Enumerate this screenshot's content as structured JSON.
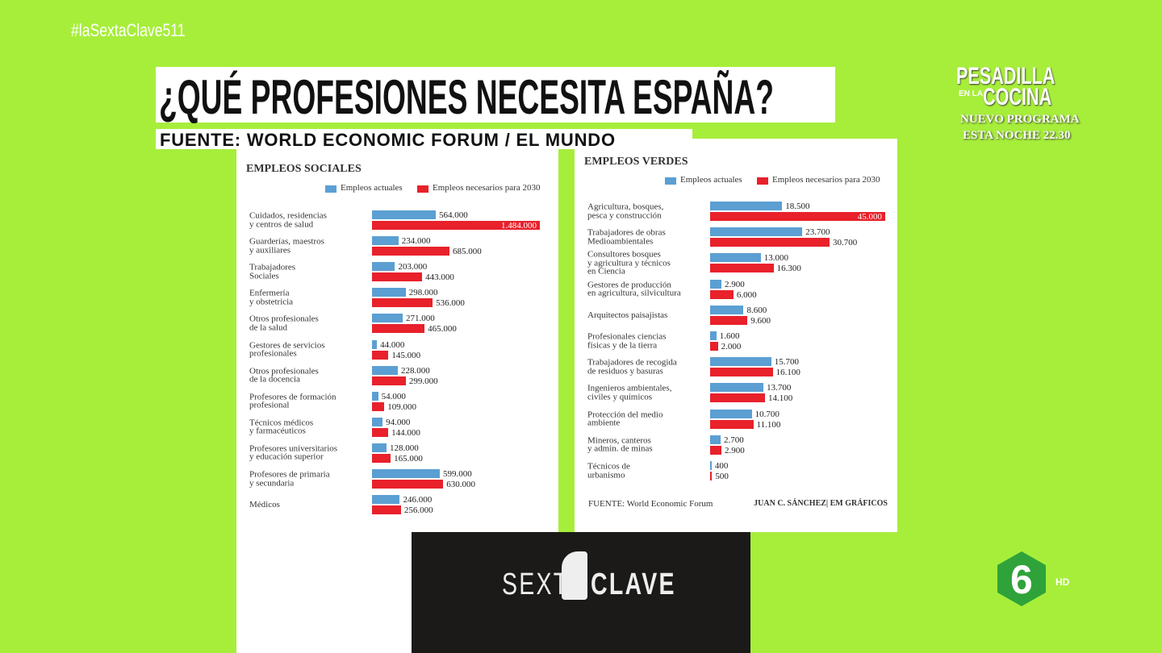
{
  "hashtag": "#laSextaClave511",
  "headline": "¿QUÉ PROFESIONES NECESITA ESPAÑA?",
  "source": "FUENTE: WORLD ECONOMIC FORUM / EL MUNDO",
  "promo": {
    "show_top": "PESADILLA",
    "show_small": "EN LA",
    "show_bottom": "COCINA",
    "line1": "NUEVO PROGRAMA",
    "line2": "ESTA NOCHE 22.30"
  },
  "program_logo": {
    "left": "SEXTA",
    "right": "CLAVE"
  },
  "channel": {
    "logo": "6",
    "quality": "HD"
  },
  "chart_data": [
    {
      "type": "bar",
      "title": "EMPLEOS SOCIALES",
      "categories": [
        "Cuidados, residencias\ny centros de salud",
        "Guarderías, maestros\ny auxiliares",
        "Trabajadores\nSociales",
        "Enfermería\ny obstetricia",
        "Otros profesionales\nde la salud",
        "Gestores de servicios\nprofesionales",
        "Otros profesionales\nde la docencia",
        "Profesores de formación\nprofesional",
        "Técnicos médicos\ny farmacéuticos",
        "Profesores universitarios\ny educación superior",
        "Profesores de primaria\ny secundaria",
        "Médicos"
      ],
      "series": [
        {
          "name": "Empleos actuales",
          "color": "#5b9fd3",
          "values": [
            564000,
            234000,
            203000,
            298000,
            271000,
            44000,
            228000,
            54000,
            94000,
            128000,
            599000,
            246000
          ],
          "value_labels": [
            "564.000",
            "234.000",
            "203.000",
            "298.000",
            "271.000",
            "44.000",
            "228.000",
            "54.000",
            "94.000",
            "128.000",
            "599.000",
            "246.000"
          ]
        },
        {
          "name": "Empleos necesarios para 2030",
          "color": "#e8212b",
          "values": [
            1484000,
            685000,
            443000,
            536000,
            465000,
            145000,
            299000,
            109000,
            144000,
            165000,
            630000,
            256000
          ],
          "value_labels": [
            "1.484.000",
            "685.000",
            "443.000",
            "536.000",
            "465.000",
            "145.000",
            "299.000",
            "109.000",
            "144.000",
            "165.000",
            "630.000",
            "256.000"
          ]
        }
      ]
    },
    {
      "type": "bar",
      "title": "EMPLEOS VERDES",
      "categories": [
        "Agricultura, bosques,\npesca y construcción",
        "Trabajadores de obras\nMedioambientales",
        "Consultores bosques\ny agricultura y técnicos\nen Ciencia",
        "Gestores de producción\nen agricultura, silvicultura",
        "Arquitectos paisajistas",
        "Profesionales ciencias\nfísicas y de la tierra",
        "Trabajadores de recogida\nde residuos y basuras",
        "Ingenieros ambientales,\nciviles y químicos",
        "Protección del medio\nambiente",
        "Mineros, canteros\ny admin. de minas",
        "Técnicos de\nurbanismo"
      ],
      "series": [
        {
          "name": "Empleos actuales",
          "color": "#5b9fd3",
          "values": [
            18500,
            23700,
            13000,
            2900,
            8600,
            1600,
            15700,
            13700,
            10700,
            2700,
            400
          ],
          "value_labels": [
            "18.500",
            "23.700",
            "13.000",
            "2.900",
            "8.600",
            "1.600",
            "15.700",
            "13.700",
            "10.700",
            "2.700",
            "400"
          ]
        },
        {
          "name": "Empleos necesarios para 2030",
          "color": "#e8212b",
          "values": [
            45000,
            30700,
            16300,
            6000,
            9600,
            2000,
            16100,
            14100,
            11100,
            2900,
            500
          ],
          "value_labels": [
            "45.000",
            "30.700",
            "16.300",
            "6.000",
            "9.600",
            "2.000",
            "16.100",
            "14.100",
            "11.100",
            "2.900",
            "500"
          ]
        }
      ],
      "footer_left": "FUENTE: World Economic Forum",
      "footer_right": "JUAN C. SÁNCHEZ| EM GRÁFICOS"
    }
  ]
}
